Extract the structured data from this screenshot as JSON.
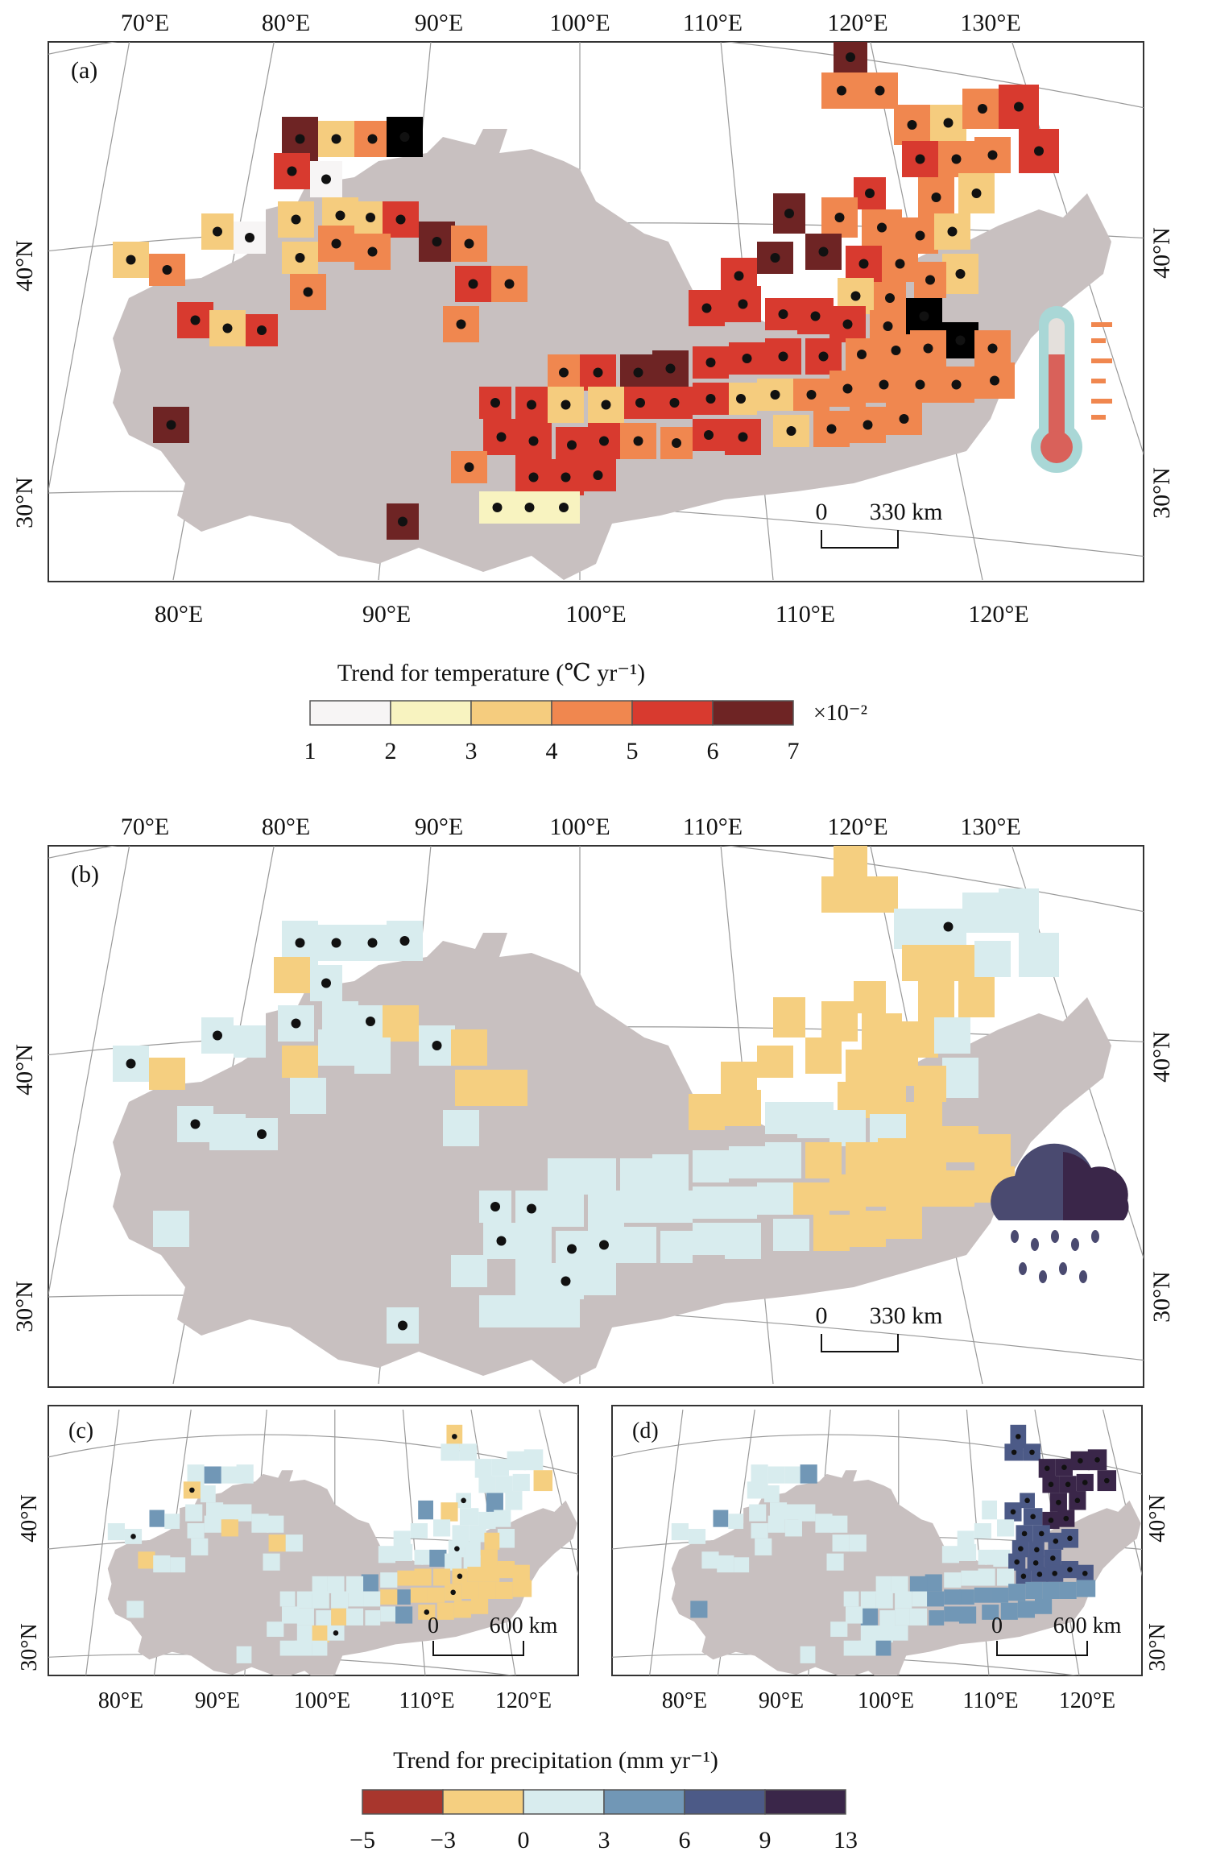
{
  "panels": [
    {
      "id": "a",
      "label": "(a)",
      "top_lon_labels": [
        "70°E",
        "80°E",
        "90°E",
        "100°E",
        "110°E",
        "120°E",
        "130°E"
      ],
      "bottom_lon_labels": [
        "80°E",
        "90°E",
        "100°E",
        "110°E",
        "120°E"
      ],
      "left_lat_labels": [
        "40°N",
        "30°N"
      ],
      "right_lat_labels": [
        "40°N",
        "30°N"
      ],
      "scale_bar": {
        "zero": "0",
        "distance": "330 km"
      },
      "icon": "thermometer-icon",
      "rows": [
        "............................1.",
        "...........................44.",
        "...........................1154",
        ".....4231.....................1234",
        ".....53343.................................2.3",
        "....202342...............4..4..3",
        "...42.321...53............4443",
        "...1.3432...42..........2.4432",
        "....22..33...23...........3332..",
        ".........3...33.......4434433",
        "......2.2..........3332255333333",
        "..3........5.3...25.66544.5633333",
        "...2...................31144423332",
        ".........1.....55111512322333",
        "......4...........3343.55543.3",
        "......2..........44454.41113.33",
        "..................3344.4.44",
        "..................4.44.4",
        "..........................",
        "..........4"
      ],
      "dots": true
    },
    {
      "id": "b",
      "label": "(b)",
      "top_lon_labels": [
        "70°E",
        "80°E",
        "90°E",
        "100°E",
        "110°E",
        "120°E",
        "130°E"
      ],
      "left_lat_labels": [
        "40°N",
        "30°N"
      ],
      "right_lat_labels": [
        "40°N",
        "30°N"
      ],
      "scale_bar": {
        "zero": "0",
        "distance": "330 km"
      },
      "icon": "rain-cloud-icon"
    },
    {
      "id": "c",
      "label": "(c)",
      "bottom_lon_labels": [
        "80°E",
        "90°E",
        "100°E",
        "110°E",
        "120°E"
      ],
      "left_lat_labels": [
        "40°N",
        "30°N"
      ],
      "scale_bar": {
        "zero": "0",
        "distance": "600 km"
      }
    },
    {
      "id": "d",
      "label": "(d)",
      "bottom_lon_labels": [
        "80°E",
        "90°E",
        "100°E",
        "110°E",
        "120°E"
      ],
      "right_lat_labels": [
        "40°N",
        "30°N"
      ],
      "scale_bar": {
        "zero": "0",
        "distance": "600 km"
      }
    }
  ],
  "legend_temperature": {
    "title": "Trend for temperature (℃ yr⁻¹)",
    "multiplier": "×10⁻²",
    "ticks": [
      "1",
      "2",
      "3",
      "4",
      "5",
      "6",
      "7"
    ],
    "colors": [
      "#f7f5f5",
      "#f8f3c0",
      "#f5cc7e",
      "#f0874f",
      "#d83a2f",
      "#6e2424"
    ]
  },
  "legend_precipitation": {
    "title": "Trend for precipitation (mm yr⁻¹)",
    "ticks": [
      "−5",
      "−3",
      "0",
      "3",
      "6",
      "9",
      "13"
    ],
    "colors": [
      "#a8362d",
      "#f5cf80",
      "#d8ecee",
      "#7197b6",
      "#4c5a87",
      "#3a2649"
    ]
  },
  "colors": {
    "land": "#c8c0c0",
    "frame": "#333333",
    "graticule": "#999999"
  }
}
